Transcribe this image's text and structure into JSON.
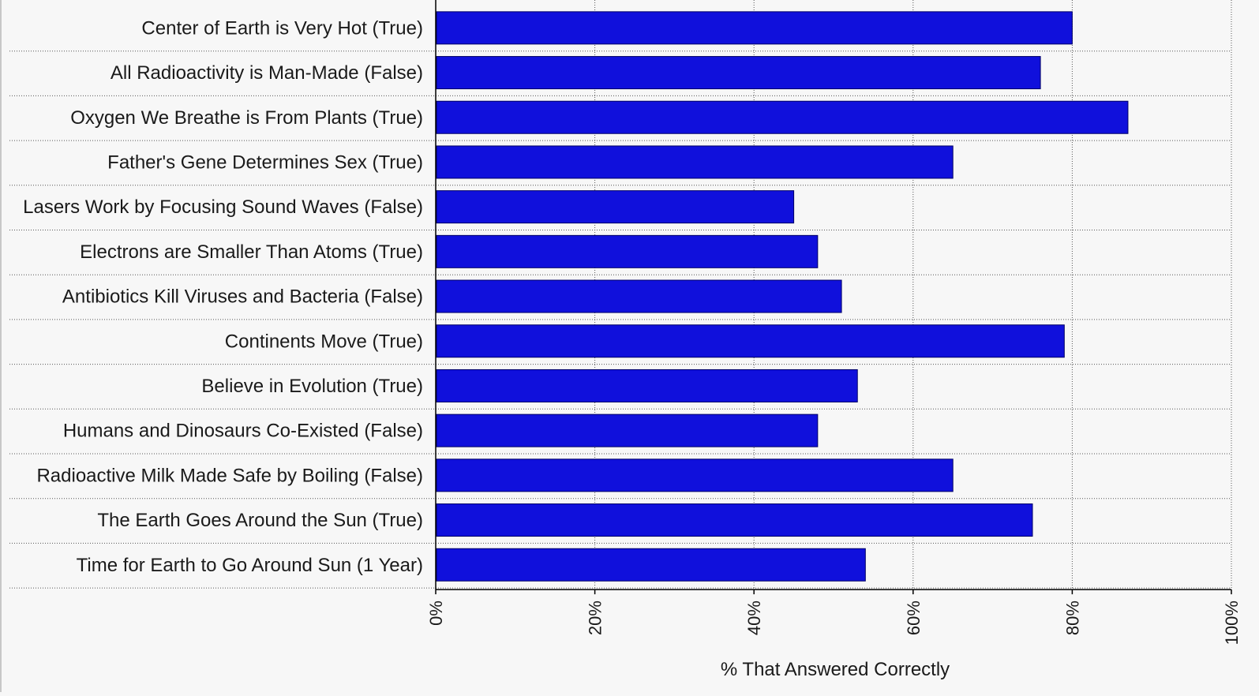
{
  "chart_data": {
    "type": "bar",
    "orientation": "horizontal",
    "categories": [
      "Center of Earth is Very Hot (True)",
      "All Radioactivity is Man-Made (False)",
      "Oxygen We Breathe is From Plants (True)",
      "Father's Gene Determines Sex (True)",
      "Lasers Work by Focusing Sound Waves (False)",
      "Electrons are Smaller Than Atoms (True)",
      "Antibiotics Kill Viruses and Bacteria (False)",
      "Continents Move (True)",
      "Believe in Evolution (True)",
      "Humans and Dinosaurs Co-Existed (False)",
      "Radioactive Milk Made Safe by Boiling (False)",
      "The Earth Goes Around the Sun (True)",
      "Time for Earth to Go Around Sun (1 Year)"
    ],
    "values": [
      80,
      76,
      87,
      65,
      45,
      48,
      51,
      79,
      53,
      48,
      65,
      75,
      54
    ],
    "title": "",
    "xlabel": "% That Answered Correctly",
    "ylabel": "",
    "xlim": [
      0,
      100
    ],
    "x_ticks": [
      0,
      20,
      40,
      60,
      80,
      100
    ],
    "x_tick_labels": [
      "0%",
      "20%",
      "40%",
      "60%",
      "80%",
      "100%"
    ],
    "grid": true,
    "legend": "none",
    "bar_color": "#1010dc",
    "bar_edge_color": "#000066"
  }
}
